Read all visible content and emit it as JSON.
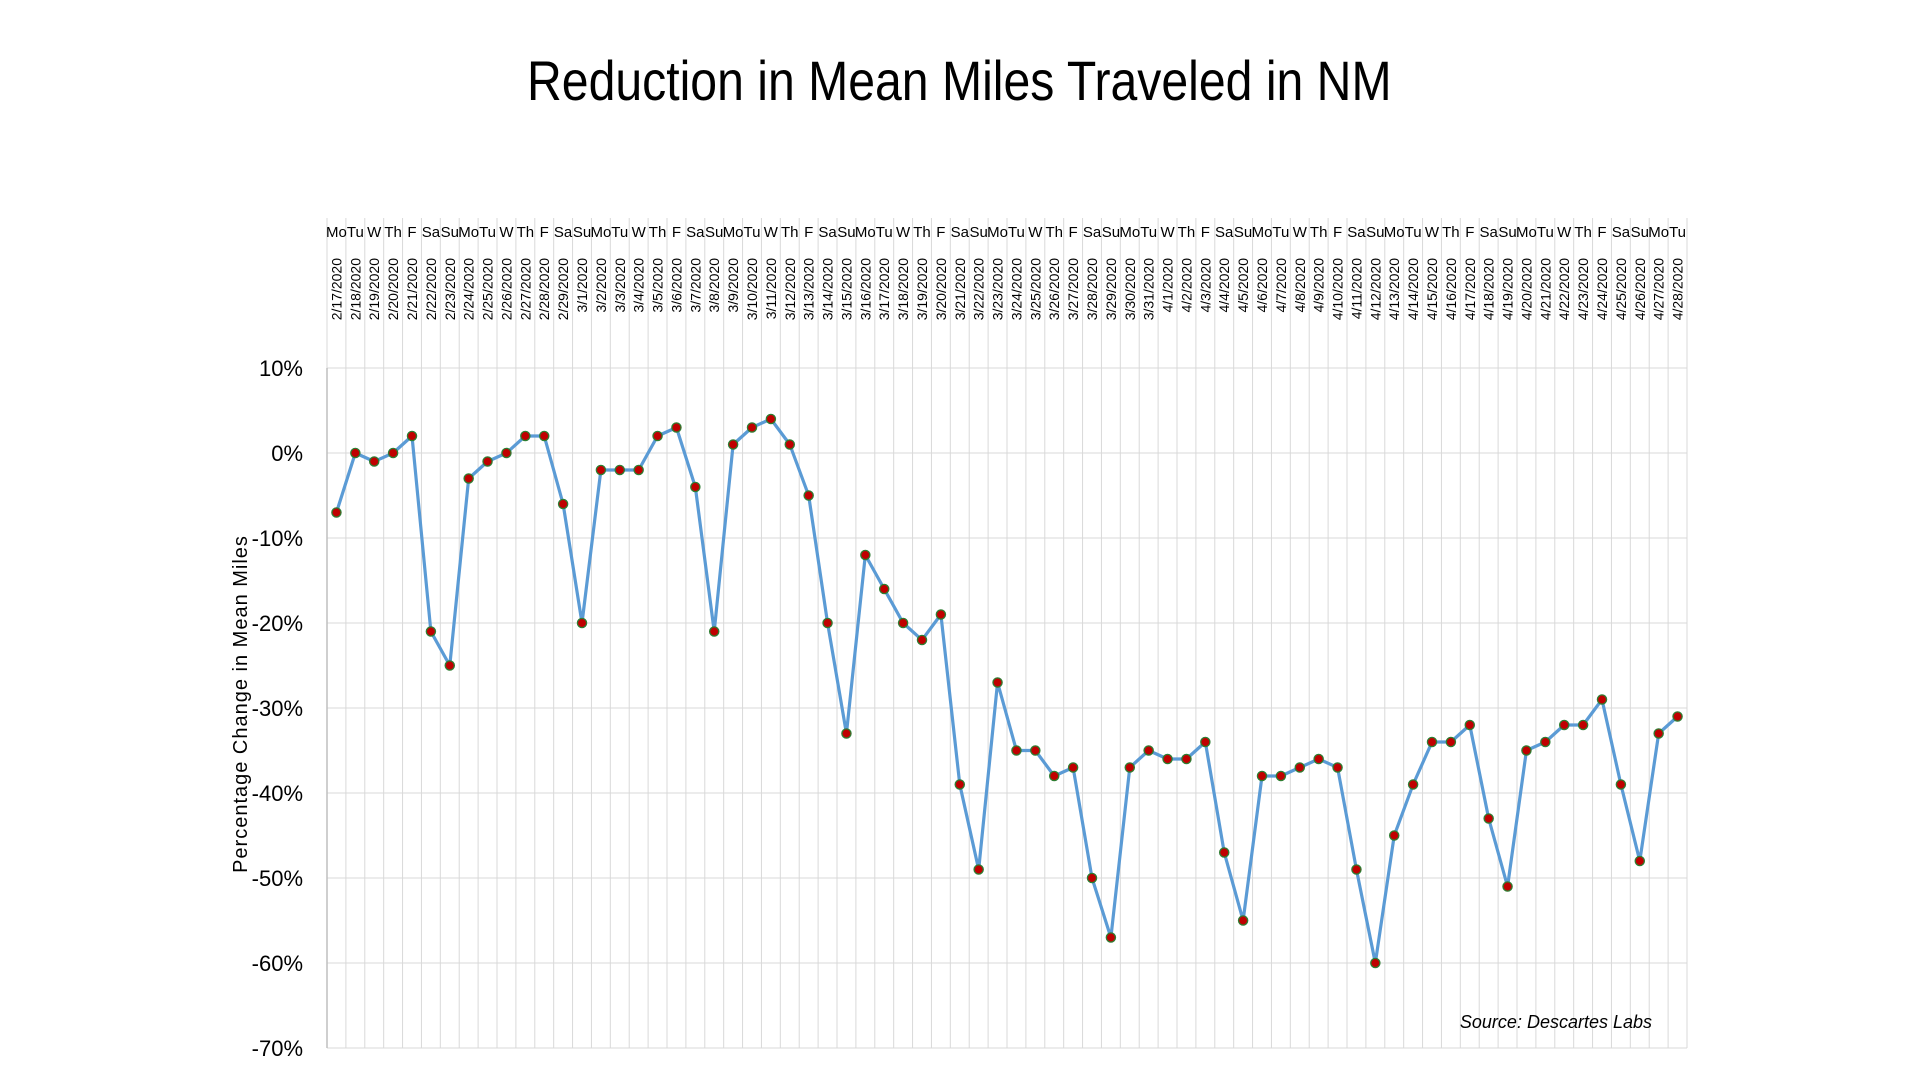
{
  "chart_data": {
    "type": "line",
    "title": "Reduction in Mean Miles Traveled in NM",
    "ylabel": "Percentage Change in Mean Miles",
    "xlabel": "",
    "ylim": [
      -70,
      10
    ],
    "y_ticks": [
      "10%",
      "0%",
      "-10%",
      "-20%",
      "-30%",
      "-40%",
      "-50%",
      "-60%",
      "-70%"
    ],
    "grid": true,
    "source": "Source: Descartes Labs",
    "colors": {
      "line": "#5b9bd5",
      "marker_fill": "#c00000",
      "marker_edge": "#2e7d32",
      "grid": "#d9d9d9"
    },
    "x": [
      "2/17/2020",
      "2/18/2020",
      "2/19/2020",
      "2/20/2020",
      "2/21/2020",
      "2/22/2020",
      "2/23/2020",
      "2/24/2020",
      "2/25/2020",
      "2/26/2020",
      "2/27/2020",
      "2/28/2020",
      "2/29/2020",
      "3/1/2020",
      "3/2/2020",
      "3/3/2020",
      "3/4/2020",
      "3/5/2020",
      "3/6/2020",
      "3/7/2020",
      "3/8/2020",
      "3/9/2020",
      "3/10/2020",
      "3/11/2020",
      "3/12/2020",
      "3/13/2020",
      "3/14/2020",
      "3/15/2020",
      "3/16/2020",
      "3/17/2020",
      "3/18/2020",
      "3/19/2020",
      "3/20/2020",
      "3/21/2020",
      "3/22/2020",
      "3/23/2020",
      "3/24/2020",
      "3/25/2020",
      "3/26/2020",
      "3/27/2020",
      "3/28/2020",
      "3/29/2020",
      "3/30/2020",
      "3/31/2020",
      "4/1/2020",
      "4/2/2020",
      "4/3/2020",
      "4/4/2020",
      "4/5/2020",
      "4/6/2020",
      "4/7/2020",
      "4/8/2020",
      "4/9/2020",
      "4/10/2020",
      "4/11/2020",
      "4/12/2020",
      "4/13/2020",
      "4/14/2020",
      "4/15/2020",
      "4/16/2020",
      "4/17/2020",
      "4/18/2020",
      "4/19/2020",
      "4/20/2020",
      "4/21/2020",
      "4/22/2020",
      "4/23/2020",
      "4/24/2020",
      "4/25/2020",
      "4/26/2020",
      "4/27/2020",
      "4/28/2020"
    ],
    "day_labels": [
      "Mo",
      "Tu",
      "W",
      "Th",
      "F",
      "Sa",
      "Su",
      "Mo",
      "Tu",
      "W",
      "Th",
      "F",
      "Sa",
      "Su",
      "Mo",
      "Tu",
      "W",
      "Th",
      "F",
      "Sa",
      "Su",
      "Mo",
      "Tu",
      "W",
      "Th",
      "F",
      "Sa",
      "Su",
      "Mo",
      "Tu",
      "W",
      "Th",
      "F",
      "Sa",
      "Su",
      "Mo",
      "Tu",
      "W",
      "Th",
      "F",
      "Sa",
      "Su",
      "Mo",
      "Tu",
      "W",
      "Th",
      "F",
      "Sa",
      "Su",
      "Mo",
      "Tu",
      "W",
      "Th",
      "F",
      "Sa",
      "Su",
      "Mo",
      "Tu",
      "W",
      "Th",
      "F",
      "Sa",
      "Su",
      "Mo",
      "Tu",
      "W",
      "Th",
      "F",
      "Sa",
      "Su",
      "Mo",
      "Tu"
    ],
    "series": [
      {
        "values": [
          -7,
          0,
          -1,
          0,
          2,
          -21,
          -25,
          -3,
          -1,
          0,
          2,
          2,
          -6,
          -20,
          -2,
          -2,
          -2,
          2,
          3,
          -4,
          -21,
          1,
          3,
          4,
          1,
          -5,
          -20,
          -33,
          -12,
          -16,
          -20,
          -22,
          -19,
          -39,
          -49,
          -27,
          -35,
          -35,
          -38,
          -37,
          -50,
          -57,
          -37,
          -35,
          -36,
          -36,
          -34,
          -47,
          -55,
          -38,
          -38,
          -37,
          -36,
          -37,
          -49,
          -60,
          -45,
          -39,
          -34,
          -34,
          -32,
          -43,
          -51,
          -35,
          -34,
          -32,
          -32,
          -29,
          -39,
          -48,
          -33,
          -31
        ]
      }
    ]
  }
}
